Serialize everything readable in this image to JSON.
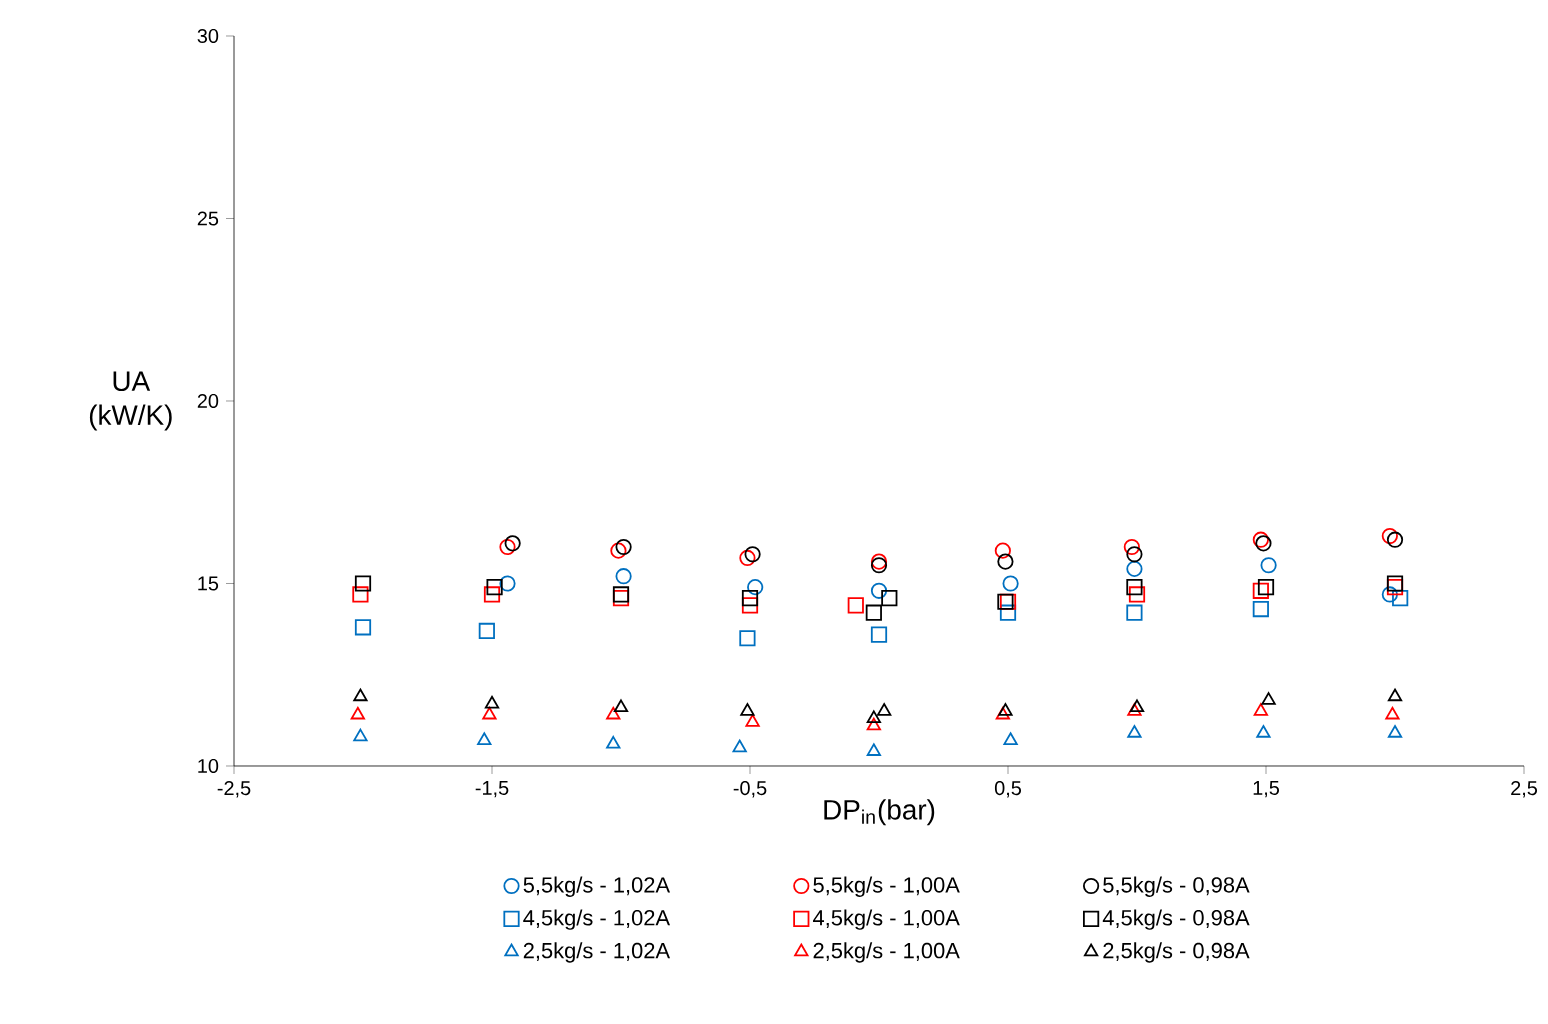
{
  "chart_data": {
    "type": "scatter",
    "xlabel": "DP$_{in}$(bar)",
    "ylabel": "UA (kW/K)",
    "xlim": [
      -2.5,
      2.5
    ],
    "ylim": [
      10,
      30
    ],
    "xticks": [
      {
        "value": -2.5,
        "label": "-2,5"
      },
      {
        "value": -1.5,
        "label": "-1,5"
      },
      {
        "value": -0.5,
        "label": "-0,5"
      },
      {
        "value": 0.5,
        "label": "0,5"
      },
      {
        "value": 1.5,
        "label": "1,5"
      },
      {
        "value": 2.5,
        "label": "2,5"
      }
    ],
    "yticks": [
      10,
      15,
      20,
      25,
      30
    ],
    "legend": "bottom",
    "series": [
      {
        "name": "5,5kg/s - 1,02A",
        "color": "#0070c0",
        "marker": "circle",
        "x": [
          -1.44,
          -0.99,
          -0.48,
          0.0,
          0.51,
          0.99,
          1.51,
          1.98
        ],
        "values": [
          15.0,
          15.2,
          14.9,
          14.8,
          15.0,
          15.4,
          15.5,
          14.7
        ]
      },
      {
        "name": "5,5kg/s - 1,00A",
        "color": "#ff0000",
        "marker": "circle",
        "x": [
          -1.44,
          -1.01,
          -0.51,
          0.0,
          0.48,
          0.98,
          1.48,
          1.98
        ],
        "values": [
          16.0,
          15.9,
          15.7,
          15.6,
          15.9,
          16.0,
          16.2,
          16.3
        ]
      },
      {
        "name": "5,5kg/s - 0,98A",
        "color": "#000000",
        "marker": "circle",
        "x": [
          -1.42,
          -0.99,
          -0.49,
          0.0,
          0.49,
          0.99,
          1.49,
          2.0
        ],
        "values": [
          16.1,
          16.0,
          15.8,
          15.5,
          15.6,
          15.8,
          16.1,
          16.2
        ]
      },
      {
        "name": "4,5kg/s - 1,02A",
        "color": "#0070c0",
        "marker": "square",
        "x": [
          -2.0,
          -1.52,
          -0.51,
          0.0,
          0.5,
          0.99,
          1.48,
          2.02
        ],
        "values": [
          13.8,
          13.7,
          13.5,
          13.6,
          14.2,
          14.2,
          14.3,
          14.6
        ]
      },
      {
        "name": "4,5kg/s - 1,00A",
        "color": "#ff0000",
        "marker": "square",
        "x": [
          -2.01,
          -1.5,
          -1.0,
          -0.5,
          -0.09,
          0.5,
          1.0,
          1.48,
          2.0
        ],
        "values": [
          14.7,
          14.7,
          14.6,
          14.4,
          14.4,
          14.5,
          14.7,
          14.8,
          14.9
        ]
      },
      {
        "name": "4,5kg/s - 0,98A",
        "color": "#000000",
        "marker": "square",
        "x": [
          -2.0,
          -1.49,
          -1.0,
          -0.5,
          -0.02,
          0.04,
          0.49,
          0.99,
          1.5,
          2.0
        ],
        "values": [
          15.0,
          14.9,
          14.7,
          14.6,
          14.2,
          14.6,
          14.5,
          14.9,
          14.9,
          15.0
        ]
      },
      {
        "name": "2,5kg/s - 1,02A",
        "color": "#0070c0",
        "marker": "triangle",
        "x": [
          -2.01,
          -1.53,
          -1.03,
          -0.54,
          -0.02,
          0.51,
          0.99,
          1.49,
          2.0
        ],
        "values": [
          10.8,
          10.7,
          10.6,
          10.5,
          10.4,
          10.7,
          10.9,
          10.9,
          10.9
        ]
      },
      {
        "name": "2,5kg/s - 1,00A",
        "color": "#ff0000",
        "marker": "triangle",
        "x": [
          -2.02,
          -1.51,
          -1.03,
          -0.49,
          -0.02,
          0.48,
          0.99,
          1.48,
          1.99
        ],
        "values": [
          11.4,
          11.4,
          11.4,
          11.2,
          11.1,
          11.4,
          11.5,
          11.5,
          11.4
        ]
      },
      {
        "name": "2,5kg/s - 0,98A",
        "color": "#000000",
        "marker": "triangle",
        "x": [
          -2.01,
          -1.5,
          -1.0,
          -0.51,
          -0.02,
          0.02,
          0.49,
          1.0,
          1.51,
          2.0
        ],
        "values": [
          11.9,
          11.7,
          11.6,
          11.5,
          11.3,
          11.5,
          11.5,
          11.6,
          11.8,
          11.9
        ]
      }
    ]
  }
}
